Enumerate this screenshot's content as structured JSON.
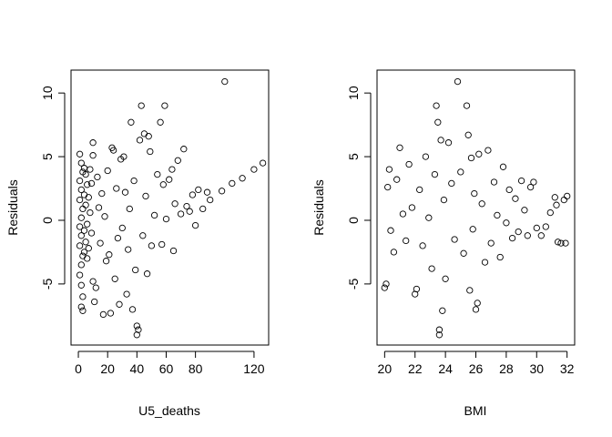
{
  "chart_data": [
    {
      "type": "scatter",
      "xlabel": "U5_deaths",
      "ylabel": "Residuals",
      "xlim": [
        -5,
        130
      ],
      "ylim": [
        -9.8,
        11.8
      ],
      "xticks": [
        0,
        20,
        40,
        60,
        80,
        120
      ],
      "xtick_labels": [
        "0",
        "20",
        "40",
        "60",
        "80",
        "120"
      ],
      "yticks": [
        -5,
        0,
        5,
        10
      ],
      "ytick_labels": [
        "-5",
        "0",
        "5",
        "10"
      ],
      "marker": "open-circle",
      "grid": false,
      "points_note_values_estimated": true,
      "points": [
        [
          1,
          5.2
        ],
        [
          2,
          4.5
        ],
        [
          3,
          3.8
        ],
        [
          1,
          3.1
        ],
        [
          2,
          2.4
        ],
        [
          1,
          1.6
        ],
        [
          3,
          0.9
        ],
        [
          2,
          0.2
        ],
        [
          1,
          -0.5
        ],
        [
          2,
          -1.2
        ],
        [
          1,
          -2.0
        ],
        [
          3,
          -2.8
        ],
        [
          2,
          -3.5
        ],
        [
          1,
          -4.3
        ],
        [
          2,
          -5.1
        ],
        [
          3,
          -6.0
        ],
        [
          2,
          -6.8
        ],
        [
          3,
          -7.1
        ],
        [
          4,
          4.1
        ],
        [
          4,
          2.0
        ],
        [
          4,
          -0.8
        ],
        [
          4,
          -2.5
        ],
        [
          5,
          3.6
        ],
        [
          5,
          1.2
        ],
        [
          5,
          -1.7
        ],
        [
          6,
          2.8
        ],
        [
          6,
          -0.3
        ],
        [
          6,
          -3.0
        ],
        [
          7,
          1.8
        ],
        [
          7,
          -2.2
        ],
        [
          8,
          4.0
        ],
        [
          8,
          0.6
        ],
        [
          9,
          -1.0
        ],
        [
          9,
          2.9
        ],
        [
          10,
          6.1
        ],
        [
          10,
          5.1
        ],
        [
          10,
          -4.8
        ],
        [
          11,
          -6.4
        ],
        [
          12,
          -5.3
        ],
        [
          13,
          3.4
        ],
        [
          14,
          1.0
        ],
        [
          15,
          -1.8
        ],
        [
          16,
          2.1
        ],
        [
          17,
          -7.4
        ],
        [
          18,
          0.3
        ],
        [
          19,
          -3.2
        ],
        [
          20,
          3.9
        ],
        [
          21,
          -2.7
        ],
        [
          22,
          -7.3
        ],
        [
          23,
          5.7
        ],
        [
          24,
          5.5
        ],
        [
          25,
          -4.6
        ],
        [
          26,
          2.5
        ],
        [
          27,
          -1.4
        ],
        [
          28,
          -6.6
        ],
        [
          29,
          4.8
        ],
        [
          30,
          -0.6
        ],
        [
          31,
          5.0
        ],
        [
          32,
          2.2
        ],
        [
          33,
          -5.8
        ],
        [
          34,
          -2.3
        ],
        [
          35,
          0.9
        ],
        [
          36,
          7.7
        ],
        [
          37,
          -7.0
        ],
        [
          38,
          3.1
        ],
        [
          39,
          -3.9
        ],
        [
          40,
          -8.3
        ],
        [
          40,
          -9.0
        ],
        [
          41,
          -8.6
        ],
        [
          42,
          6.3
        ],
        [
          43,
          9.0
        ],
        [
          44,
          -1.2
        ],
        [
          45,
          6.8
        ],
        [
          46,
          1.9
        ],
        [
          47,
          -4.2
        ],
        [
          48,
          6.6
        ],
        [
          49,
          5.4
        ],
        [
          50,
          -2.0
        ],
        [
          52,
          0.4
        ],
        [
          54,
          3.6
        ],
        [
          56,
          7.7
        ],
        [
          57,
          -1.9
        ],
        [
          58,
          2.8
        ],
        [
          59,
          9.0
        ],
        [
          60,
          0.1
        ],
        [
          62,
          3.2
        ],
        [
          64,
          4.0
        ],
        [
          65,
          -2.4
        ],
        [
          66,
          1.3
        ],
        [
          68,
          4.7
        ],
        [
          70,
          0.5
        ],
        [
          72,
          5.6
        ],
        [
          74,
          1.1
        ],
        [
          76,
          0.7
        ],
        [
          78,
          2.0
        ],
        [
          80,
          -0.4
        ],
        [
          82,
          2.4
        ],
        [
          85,
          0.9
        ],
        [
          88,
          2.2
        ],
        [
          90,
          1.6
        ],
        [
          100,
          10.9
        ],
        [
          105,
          2.9
        ],
        [
          112,
          3.3
        ],
        [
          120,
          4.0
        ],
        [
          126,
          4.5
        ],
        [
          98,
          2.3
        ]
      ]
    },
    {
      "type": "scatter",
      "xlabel": "BMI",
      "ylabel": "Residuals",
      "xlim": [
        19.5,
        32.5
      ],
      "ylim": [
        -9.8,
        11.8
      ],
      "xticks": [
        20,
        22,
        24,
        26,
        28,
        30,
        32
      ],
      "xtick_labels": [
        "20",
        "22",
        "24",
        "26",
        "28",
        "30",
        "32"
      ],
      "yticks": [
        -5,
        0,
        5,
        10
      ],
      "ytick_labels": [
        "-5",
        "0",
        "5",
        "10"
      ],
      "marker": "open-circle",
      "grid": false,
      "points_note_values_estimated": true,
      "points": [
        [
          20.0,
          -5.3
        ],
        [
          20.1,
          -5.0
        ],
        [
          20.2,
          2.6
        ],
        [
          20.3,
          4.0
        ],
        [
          20.4,
          -0.8
        ],
        [
          20.6,
          -2.5
        ],
        [
          20.8,
          3.2
        ],
        [
          21.0,
          5.7
        ],
        [
          21.2,
          0.5
        ],
        [
          21.4,
          -1.6
        ],
        [
          21.6,
          4.4
        ],
        [
          21.8,
          1.0
        ],
        [
          22.0,
          -5.8
        ],
        [
          22.1,
          -5.4
        ],
        [
          22.3,
          2.4
        ],
        [
          22.5,
          -2.0
        ],
        [
          22.7,
          5.0
        ],
        [
          22.9,
          0.2
        ],
        [
          23.1,
          -3.8
        ],
        [
          23.3,
          3.6
        ],
        [
          23.4,
          9.0
        ],
        [
          23.5,
          7.7
        ],
        [
          23.6,
          -8.6
        ],
        [
          23.6,
          -9.0
        ],
        [
          23.7,
          6.3
        ],
        [
          23.8,
          -7.1
        ],
        [
          23.9,
          1.6
        ],
        [
          24.0,
          -4.6
        ],
        [
          24.2,
          6.1
        ],
        [
          24.4,
          2.9
        ],
        [
          24.6,
          -1.5
        ],
        [
          24.8,
          10.9
        ],
        [
          25.0,
          3.8
        ],
        [
          25.2,
          -2.6
        ],
        [
          25.4,
          9.0
        ],
        [
          25.5,
          6.7
        ],
        [
          25.6,
          -5.5
        ],
        [
          25.7,
          4.9
        ],
        [
          25.8,
          -0.7
        ],
        [
          25.9,
          2.1
        ],
        [
          26.0,
          -7.0
        ],
        [
          26.1,
          -6.5
        ],
        [
          26.2,
          5.2
        ],
        [
          26.4,
          1.3
        ],
        [
          26.6,
          -3.3
        ],
        [
          26.8,
          5.5
        ],
        [
          27.0,
          -1.8
        ],
        [
          27.2,
          3.0
        ],
        [
          27.4,
          0.4
        ],
        [
          27.6,
          -2.9
        ],
        [
          27.8,
          4.2
        ],
        [
          28.0,
          -0.2
        ],
        [
          28.2,
          2.4
        ],
        [
          28.4,
          -1.4
        ],
        [
          28.6,
          1.7
        ],
        [
          28.8,
          -0.9
        ],
        [
          29.0,
          3.1
        ],
        [
          29.2,
          0.8
        ],
        [
          29.4,
          -1.2
        ],
        [
          29.6,
          2.6
        ],
        [
          29.8,
          3.0
        ],
        [
          30.0,
          -0.6
        ],
        [
          30.3,
          -1.2
        ],
        [
          30.6,
          -0.5
        ],
        [
          30.9,
          0.6
        ],
        [
          31.2,
          1.8
        ],
        [
          31.3,
          1.2
        ],
        [
          31.4,
          -1.7
        ],
        [
          31.6,
          -1.8
        ],
        [
          31.8,
          1.6
        ],
        [
          32.0,
          1.9
        ],
        [
          31.9,
          -1.8
        ]
      ]
    }
  ]
}
